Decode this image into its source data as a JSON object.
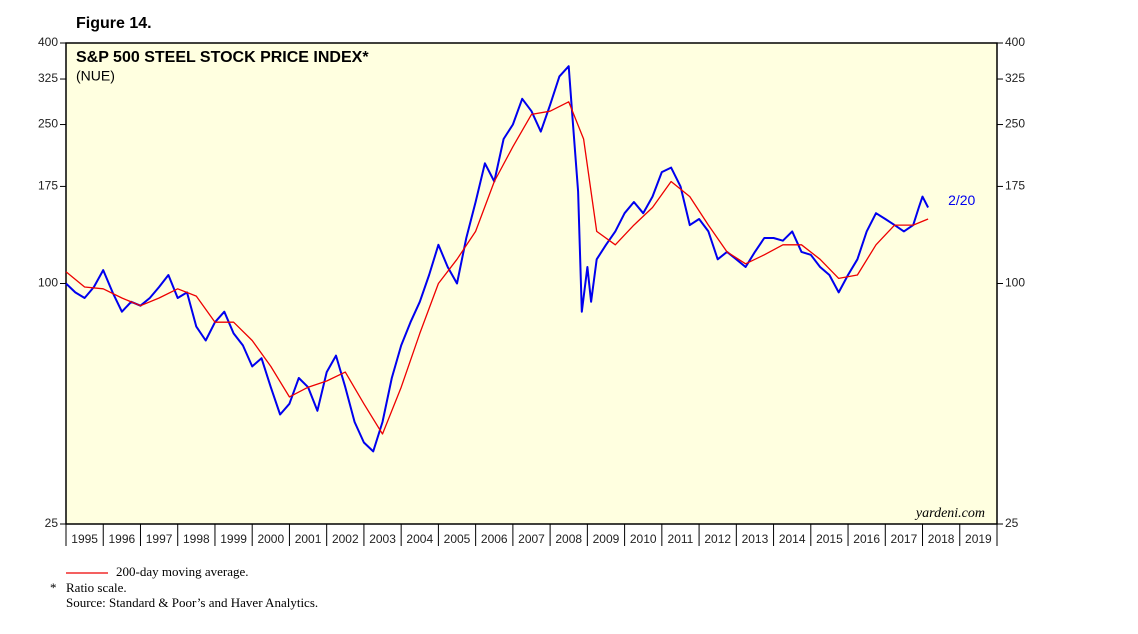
{
  "chart_data": {
    "type": "line",
    "figure_label": "Figure 14.",
    "title": "S&P 500 STEEL STOCK PRICE INDEX*",
    "subtitle": "(NUE)",
    "annotation": "2/20",
    "watermark": "yardeni.com",
    "footnotes": [
      "*",
      "Ratio scale.",
      "Source: Standard & Poor’s and Haver Analytics."
    ],
    "yscale": "log",
    "ylim": [
      25,
      400
    ],
    "yticks": [
      25,
      100,
      175,
      250,
      325,
      400
    ],
    "xlim": [
      1995,
      2020
    ],
    "xticks": [
      {
        "value": 1995,
        "label": "1995"
      },
      {
        "value": 1996,
        "label": "1996"
      },
      {
        "value": 1997,
        "label": "1997"
      },
      {
        "value": 1998,
        "label": "1998"
      },
      {
        "value": 1999,
        "label": "1999"
      },
      {
        "value": 2000,
        "label": "2000"
      },
      {
        "value": 2001,
        "label": "2001"
      },
      {
        "value": 2002,
        "label": "2002"
      },
      {
        "value": 2003,
        "label": "2003"
      },
      {
        "value": 2004,
        "label": "2004"
      },
      {
        "value": 2005,
        "label": "2005"
      },
      {
        "value": 2006,
        "label": "2006"
      },
      {
        "value": 2007,
        "label": "2007"
      },
      {
        "value": 2008,
        "label": "2008"
      },
      {
        "value": 2009,
        "label": "2009"
      },
      {
        "value": 2010,
        "label": "2010"
      },
      {
        "value": 2011,
        "label": "2011"
      },
      {
        "value": 2012,
        "label": "2012"
      },
      {
        "value": 2013,
        "label": "2013"
      },
      {
        "value": 2014,
        "label": "2014"
      },
      {
        "value": 2015,
        "label": "2015"
      },
      {
        "value": 2016,
        "label": "2016"
      },
      {
        "value": 2017,
        "label": "2017"
      },
      {
        "value": 2018,
        "label": "2018"
      },
      {
        "value": 2019,
        "label": "2019"
      }
    ],
    "series": [
      {
        "color": "#0000ee",
        "x": [
          1995,
          1995.25,
          1995.5,
          1995.75,
          1996,
          1996.25,
          1996.5,
          1996.75,
          1997,
          1997.25,
          1997.5,
          1997.75,
          1998,
          1998.25,
          1998.5,
          1998.75,
          1999,
          1999.25,
          1999.5,
          1999.75,
          2000,
          2000.25,
          2000.5,
          2000.75,
          2001,
          2001.25,
          2001.5,
          2001.75,
          2002,
          2002.25,
          2002.5,
          2002.75,
          2003,
          2003.25,
          2003.5,
          2003.75,
          2004,
          2004.25,
          2004.5,
          2004.75,
          2005,
          2005.25,
          2005.5,
          2005.75,
          2006,
          2006.25,
          2006.5,
          2006.75,
          2007,
          2007.25,
          2007.5,
          2007.75,
          2008,
          2008.25,
          2008.5,
          2008.6,
          2008.75,
          2008.85,
          2009,
          2009.1,
          2009.25,
          2009.5,
          2009.75,
          2010,
          2010.25,
          2010.5,
          2010.75,
          2011,
          2011.25,
          2011.5,
          2011.75,
          2012,
          2012.25,
          2012.5,
          2012.75,
          2013,
          2013.25,
          2013.5,
          2013.75,
          2014,
          2014.25,
          2014.5,
          2014.75,
          2015,
          2015.25,
          2015.5,
          2015.75,
          2016,
          2016.25,
          2016.5,
          2016.75,
          2017,
          2017.25,
          2017.5,
          2017.75,
          2017.9,
          2018,
          2018.15
        ],
        "values": [
          100,
          95,
          92,
          98,
          108,
          95,
          85,
          90,
          88,
          92,
          98,
          105,
          92,
          95,
          78,
          72,
          80,
          85,
          75,
          70,
          62,
          65,
          55,
          47,
          50,
          58,
          55,
          48,
          60,
          66,
          55,
          45,
          40,
          38,
          45,
          58,
          70,
          80,
          90,
          105,
          125,
          110,
          100,
          130,
          160,
          200,
          180,
          230,
          250,
          290,
          270,
          240,
          280,
          330,
          350,
          260,
          170,
          85,
          110,
          90,
          115,
          125,
          135,
          150,
          160,
          150,
          165,
          190,
          195,
          175,
          140,
          145,
          135,
          115,
          120,
          115,
          110,
          120,
          130,
          130,
          128,
          135,
          120,
          118,
          110,
          105,
          95,
          105,
          115,
          135,
          150,
          145,
          140,
          135,
          140,
          155,
          165,
          155
        ]
      },
      {
        "name": "200-day moving average.",
        "color": "#ee0000",
        "x": [
          1995,
          1995.5,
          1996,
          1996.5,
          1997,
          1997.5,
          1998,
          1998.5,
          1999,
          1999.5,
          2000,
          2000.5,
          2001,
          2001.5,
          2002,
          2002.5,
          2003,
          2003.5,
          2004,
          2004.5,
          2005,
          2005.5,
          2006,
          2006.5,
          2007,
          2007.5,
          2008,
          2008.5,
          2008.9,
          2009.25,
          2009.75,
          2010.25,
          2010.75,
          2011.25,
          2011.75,
          2012.25,
          2012.75,
          2013.25,
          2013.75,
          2014.25,
          2014.75,
          2015.25,
          2015.75,
          2016.25,
          2016.75,
          2017.25,
          2017.75,
          2018.15
        ],
        "values": [
          107,
          98,
          97,
          92,
          88,
          92,
          97,
          93,
          80,
          80,
          72,
          62,
          52,
          55,
          57,
          60,
          50,
          42,
          55,
          75,
          100,
          115,
          135,
          180,
          220,
          265,
          270,
          285,
          230,
          135,
          125,
          140,
          155,
          180,
          165,
          140,
          120,
          112,
          118,
          125,
          125,
          115,
          103,
          105,
          125,
          140,
          140,
          145
        ]
      }
    ]
  }
}
